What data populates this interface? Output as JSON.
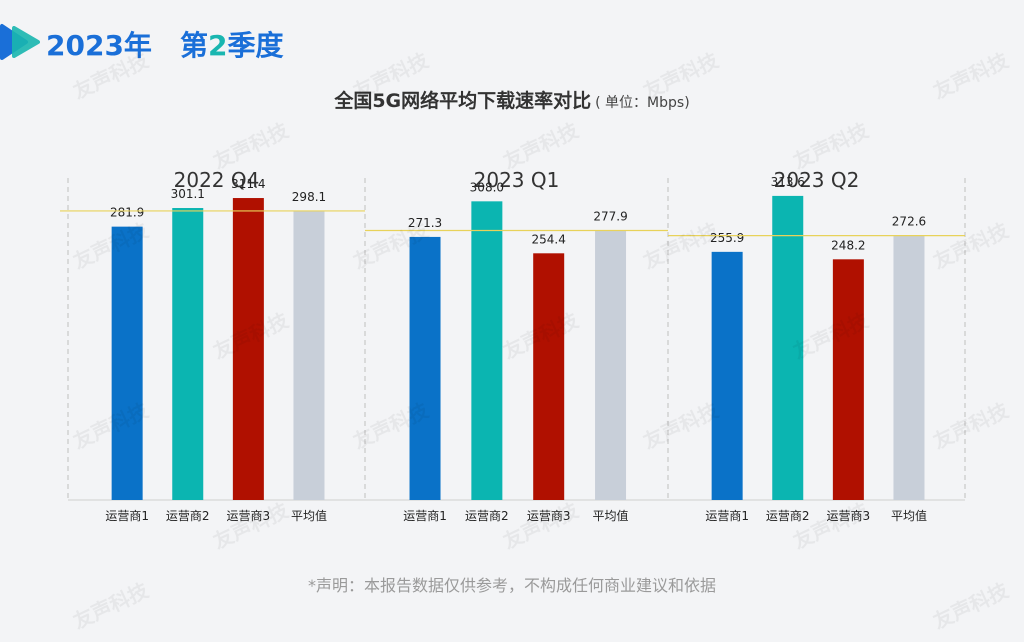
{
  "header": {
    "year": "2023年",
    "quarter_prefix": "第",
    "quarter_num": "2",
    "quarter_suffix": "季度",
    "logo": "play-icon"
  },
  "title": {
    "main": "全国5G网络平均下载速率对比",
    "unit": "( 单位：Mbps)"
  },
  "disclaimer": "*声明：本报告数据仅供参考，不构成任何商业建议和依据",
  "watermark": "友声科技",
  "colors": {
    "operator1": "#0a72c8",
    "operator2": "#0bb5b1",
    "operator3": "#b01000",
    "average": "#c8cfd9",
    "avg_line": "#e8d25a",
    "brand": "#1a6fd8"
  },
  "chart_data": {
    "type": "bar",
    "ylim": [
      0,
      330
    ],
    "categories": [
      "运营商1",
      "运营商2",
      "运营商3",
      "平均值"
    ],
    "groups": [
      {
        "name": "2022 Q4",
        "values": [
          281.9,
          301.1,
          311.4,
          298.1
        ],
        "labels": [
          "281.9",
          "301.1",
          "311.4",
          "298.1"
        ],
        "reference": 298.1
      },
      {
        "name": "2023 Q1",
        "values": [
          271.3,
          308.0,
          254.4,
          277.9
        ],
        "labels": [
          "271.3",
          "308.0",
          "254.4",
          "277.9"
        ],
        "reference": 277.9
      },
      {
        "name": "2023 Q2",
        "values": [
          255.9,
          313.6,
          248.2,
          272.6
        ],
        "labels": [
          "255.9",
          "313.6",
          "248.2",
          "272.6"
        ],
        "reference": 272.6
      }
    ]
  }
}
